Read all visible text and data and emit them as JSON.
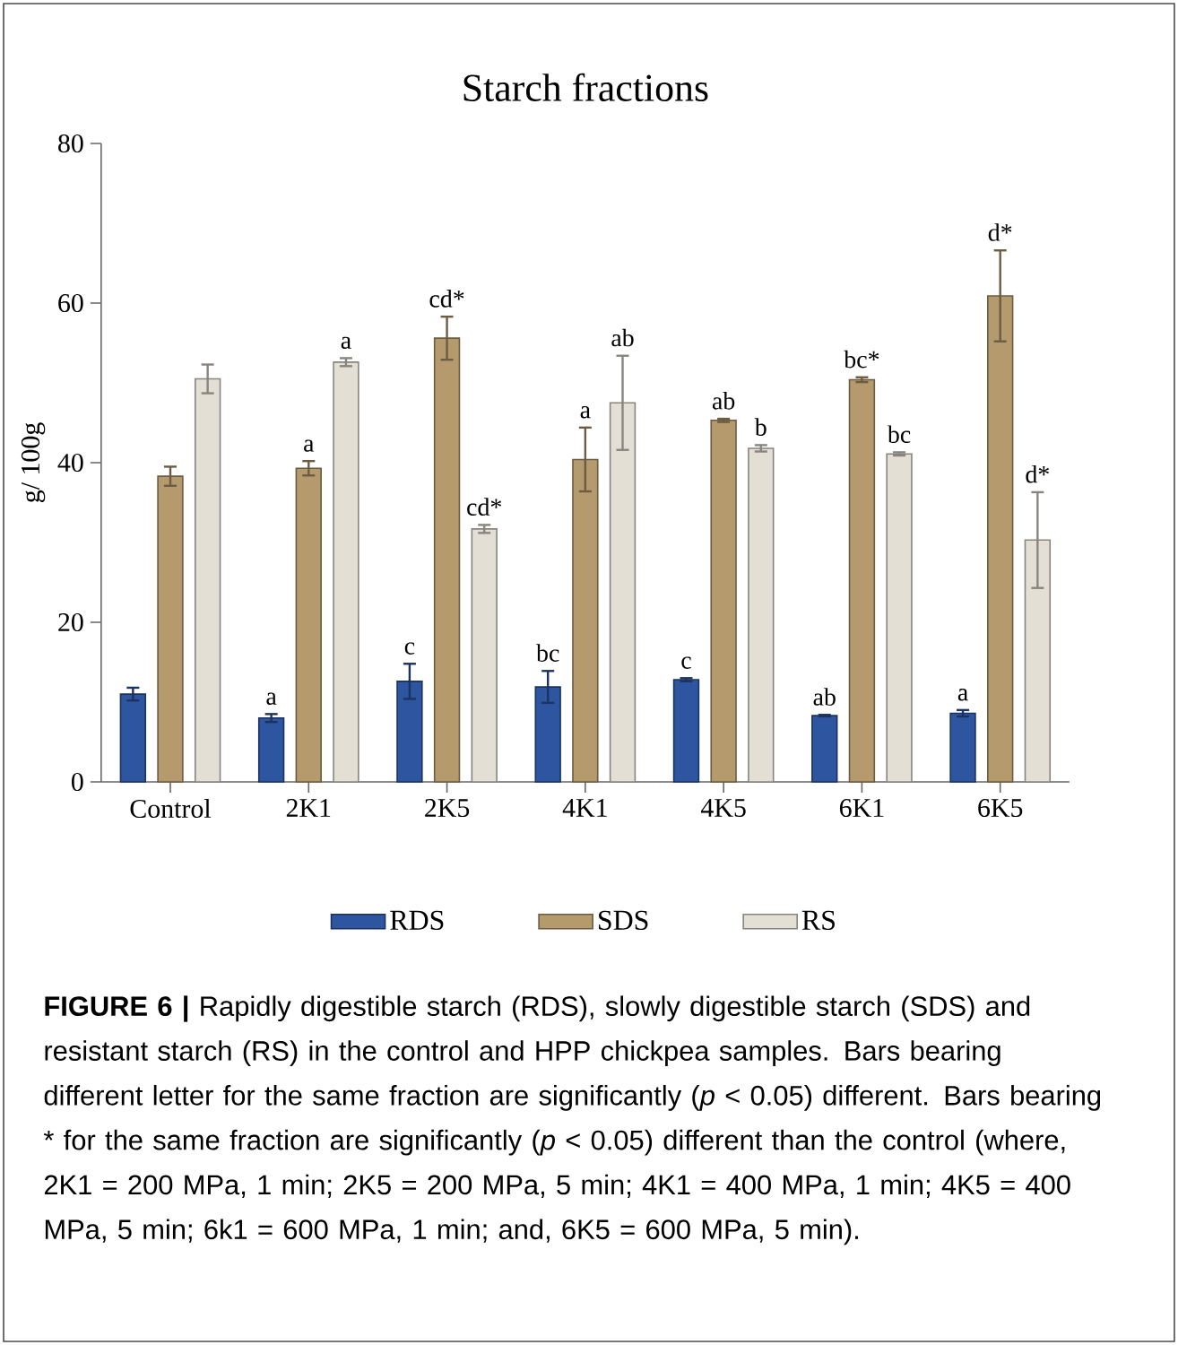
{
  "chart_data": {
    "type": "bar",
    "title": "Starch fractions",
    "ylabel": "g/ 100g",
    "categories": [
      "Control",
      "2K1",
      "2K5",
      "4K1",
      "4K5",
      "6K1",
      "6K5"
    ],
    "series": [
      {
        "name": "RDS",
        "color": "#2e56a0",
        "values": [
          11.0,
          8.0,
          12.6,
          11.9,
          12.8,
          8.3,
          8.6
        ],
        "errors": [
          0.8,
          0.5,
          2.2,
          2.0,
          0.2,
          0.1,
          0.4
        ],
        "value_labels": [
          null,
          "a",
          "c",
          "bc",
          "c",
          "ab",
          "a"
        ]
      },
      {
        "name": "SDS",
        "color": "#b59a6d",
        "values": [
          38.3,
          39.3,
          55.6,
          40.4,
          45.3,
          50.4,
          60.9
        ],
        "errors": [
          1.2,
          0.9,
          2.7,
          4.0,
          0.2,
          0.3,
          5.7
        ],
        "value_labels": [
          null,
          "a",
          "cd*",
          "a",
          "ab",
          "bc*",
          "d*"
        ]
      },
      {
        "name": "RS",
        "color": "#e3dfd4",
        "values": [
          50.5,
          52.6,
          31.7,
          47.5,
          41.8,
          41.1,
          30.3
        ],
        "errors": [
          1.8,
          0.5,
          0.5,
          5.9,
          0.4,
          0.2,
          6.0
        ],
        "value_labels": [
          null,
          "a",
          "cd*",
          "ab",
          "b",
          "bc",
          "d*"
        ]
      }
    ],
    "ylim": [
      0,
      80
    ],
    "yticks": [
      0,
      20,
      40,
      60,
      80
    ],
    "grid": false,
    "legend": "bottom",
    "annotations": [
      "**FIGURE 6 |** Rapidly digestible starch (RDS), slowly digestible starch (SDS) and resistant starch (RS) in the control and HPP chickpea samples. Bars bearing different letter for the same fraction are significantly (*p* < 0.05) different. Bars bearing * for the same fraction are significantly (*p* < 0.05) different than the control (where, 2K1 = 200 MPa, 1 min; 2K5 = 200 MPa, 5 min; 4K1 = 400 MPa, 1 min; 4K5 = 400 MPa, 5 min; 6k1 = 600 MPa, 1 min; and, 6K5 = 600 MPa, 5 min)."
    ]
  }
}
